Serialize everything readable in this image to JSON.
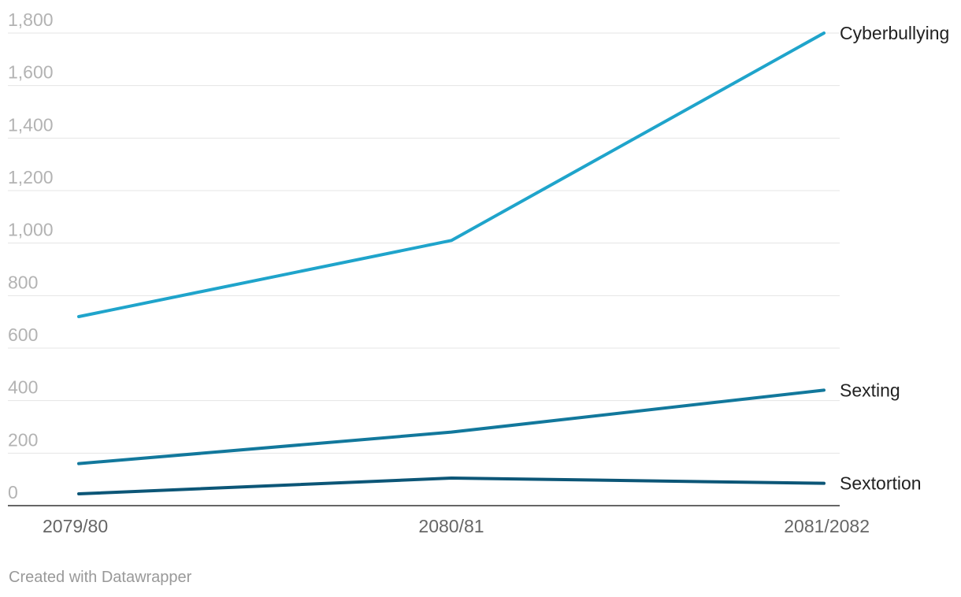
{
  "chart_data": {
    "type": "line",
    "title": "",
    "xlabel": "",
    "ylabel": "",
    "categories": [
      "2079/80",
      "2080/81",
      "2081/2082"
    ],
    "yticks": [
      "0",
      "200",
      "400",
      "600",
      "800",
      "1,000",
      "1,200",
      "1,400",
      "1,600",
      "1,800"
    ],
    "ylim": [
      0,
      1800
    ],
    "grid": true,
    "legend": "direct labels at line ends",
    "series": [
      {
        "name": "Cyberbullying",
        "values": [
          720,
          1010,
          1800
        ],
        "color": "#1fa4cb"
      },
      {
        "name": "Sexting",
        "values": [
          160,
          280,
          440
        ],
        "color": "#12789c"
      },
      {
        "name": "Sextortion",
        "values": [
          45,
          105,
          85
        ],
        "color": "#0c5677"
      }
    ]
  },
  "footer": {
    "credit": "Created with Datawrapper"
  }
}
